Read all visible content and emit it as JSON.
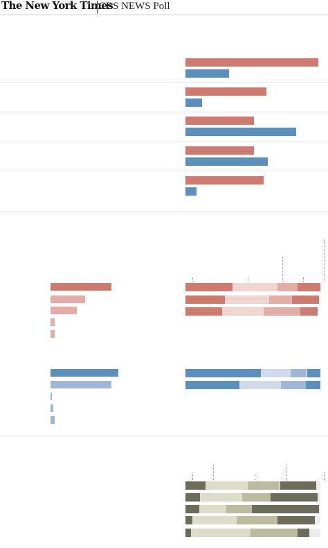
{
  "header": {
    "logo_text": "The New York Times",
    "poll_label": "CBS NEWS Poll"
  },
  "colors": {
    "rep_dark": "#cf7a6e",
    "rep_light": "#f0d4ce",
    "rep_mid": "#e4aca4",
    "dem_dark": "#5b8fbd",
    "dem_light": "#cfdbea",
    "dem_mid": "#9fb7d6",
    "ind_dark": "#6d6c5c",
    "ind_light": "#dcdcc8",
    "ind_mid": "#bdbb9f",
    "ind_pale": "#ececec"
  },
  "chart_data": [
    {
      "type": "bar",
      "orientation": "horizontal",
      "categories": [
        "",
        "",
        "",
        "",
        ""
      ],
      "series": [
        {
          "color": "rep",
          "values": [
            97,
            59,
            50,
            50,
            57
          ]
        },
        {
          "color": "dem",
          "values": [
            32,
            12,
            81,
            60,
            8
          ]
        }
      ],
      "xlim": [
        0,
        100
      ]
    },
    {
      "type": "bar",
      "orientation": "horizontal",
      "categories": [
        "",
        "",
        "",
        "",
        ""
      ],
      "series": [
        {
          "color": "rep",
          "values": [
            44,
            25,
            19,
            3,
            3
          ]
        }
      ],
      "xlim": [
        0,
        100
      ]
    },
    {
      "type": "bar",
      "orientation": "horizontal",
      "stacked": true,
      "categories": [
        "",
        "",
        ""
      ],
      "series": [
        {
          "color": "rep_dark",
          "values": [
            35,
            29,
            27
          ]
        },
        {
          "color": "rep_light",
          "values": [
            33,
            33,
            31
          ]
        },
        {
          "color": "rep_mid",
          "values": [
            15,
            17,
            27
          ]
        },
        {
          "color": "rep_dark",
          "values": [
            17,
            20,
            13
          ]
        }
      ],
      "xlim": [
        0,
        100
      ]
    },
    {
      "type": "bar",
      "orientation": "horizontal",
      "categories": [
        "",
        "",
        "",
        "",
        ""
      ],
      "series": [
        {
          "color": "dem",
          "values": [
            49,
            44,
            1,
            2,
            3
          ]
        }
      ],
      "xlim": [
        0,
        100
      ]
    },
    {
      "type": "bar",
      "orientation": "horizontal",
      "stacked": true,
      "categories": [
        "",
        ""
      ],
      "series": [
        {
          "color": "dem_dark",
          "values": [
            56,
            40
          ]
        },
        {
          "color": "dem_light",
          "values": [
            22,
            31
          ]
        },
        {
          "color": "dem_mid",
          "values": [
            12,
            18
          ]
        },
        {
          "color": "dem_dark",
          "values": [
            10,
            11
          ]
        }
      ],
      "xlim": [
        0,
        100
      ]
    },
    {
      "type": "bar",
      "orientation": "horizontal",
      "stacked": true,
      "categories": [
        "",
        "",
        "",
        "",
        ""
      ],
      "series": [
        {
          "color": "ind_dark",
          "values": [
            15,
            11,
            10,
            5,
            4
          ]
        },
        {
          "color": "ind_light",
          "values": [
            31,
            31,
            20,
            33,
            44
          ]
        },
        {
          "color": "ind_mid",
          "values": [
            24,
            21,
            19,
            30,
            35
          ]
        },
        {
          "color": "ind_dark",
          "values": [
            27,
            35,
            50,
            28,
            9
          ]
        },
        {
          "color": "ind_pale",
          "values": [
            3,
            2,
            1,
            4,
            8
          ]
        }
      ],
      "xlim": [
        0,
        100
      ]
    }
  ]
}
